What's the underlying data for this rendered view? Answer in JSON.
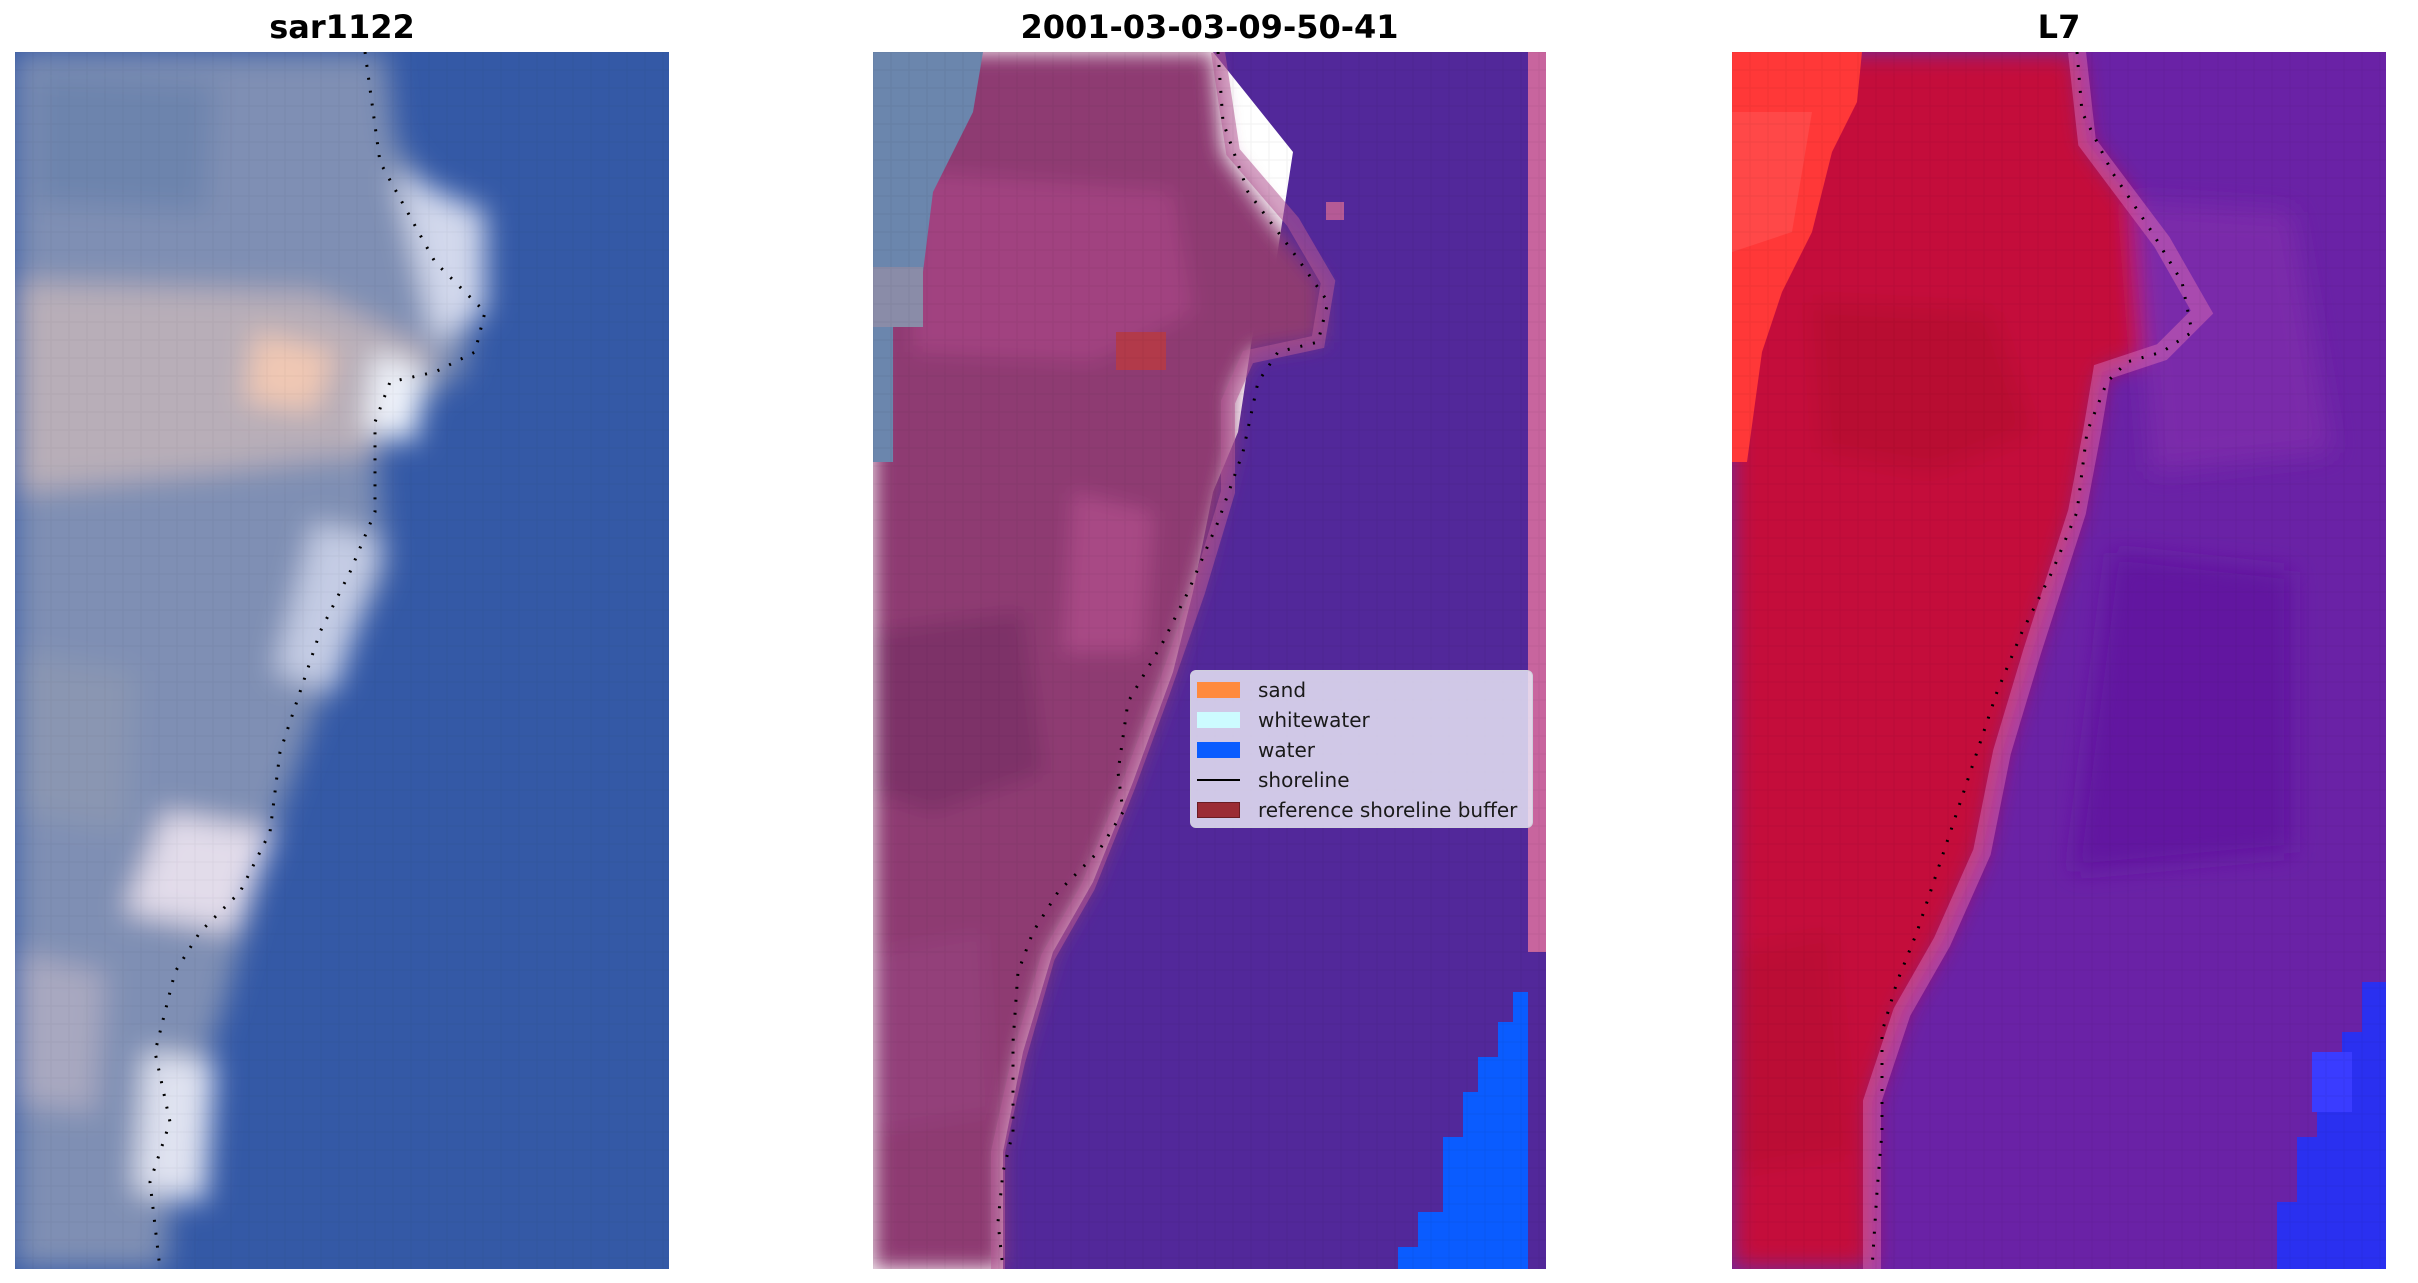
{
  "panels": [
    {
      "title": "sar1122"
    },
    {
      "title": "2001-03-03-09-50-41"
    },
    {
      "title": "L7"
    }
  ],
  "legend": {
    "items": [
      {
        "label": "sand",
        "kind": "patch",
        "color": "#ff8a3d"
      },
      {
        "label": "whitewater",
        "kind": "patch",
        "color": "#ccfbff"
      },
      {
        "label": "water",
        "kind": "patch",
        "color": "#0a5cff"
      },
      {
        "label": "shoreline",
        "kind": "line",
        "color": "#000000"
      },
      {
        "label": "reference shoreline buffer",
        "kind": "patch",
        "color": "#9b2b34"
      }
    ]
  },
  "colors": {
    "sea_rgb": "#3158a8",
    "beach_rgb": "#c4c4d8",
    "classified_water_overlay": "#52289a",
    "classified_land": "#8e3a72",
    "classified_water_class": "#0a5cff",
    "l7_land": "#c4103a",
    "l7_sea": "#6a22a6",
    "l7_bright_land": "#ff3838",
    "l7_water": "#2a30f0",
    "shoreline_dots": "#000000"
  }
}
